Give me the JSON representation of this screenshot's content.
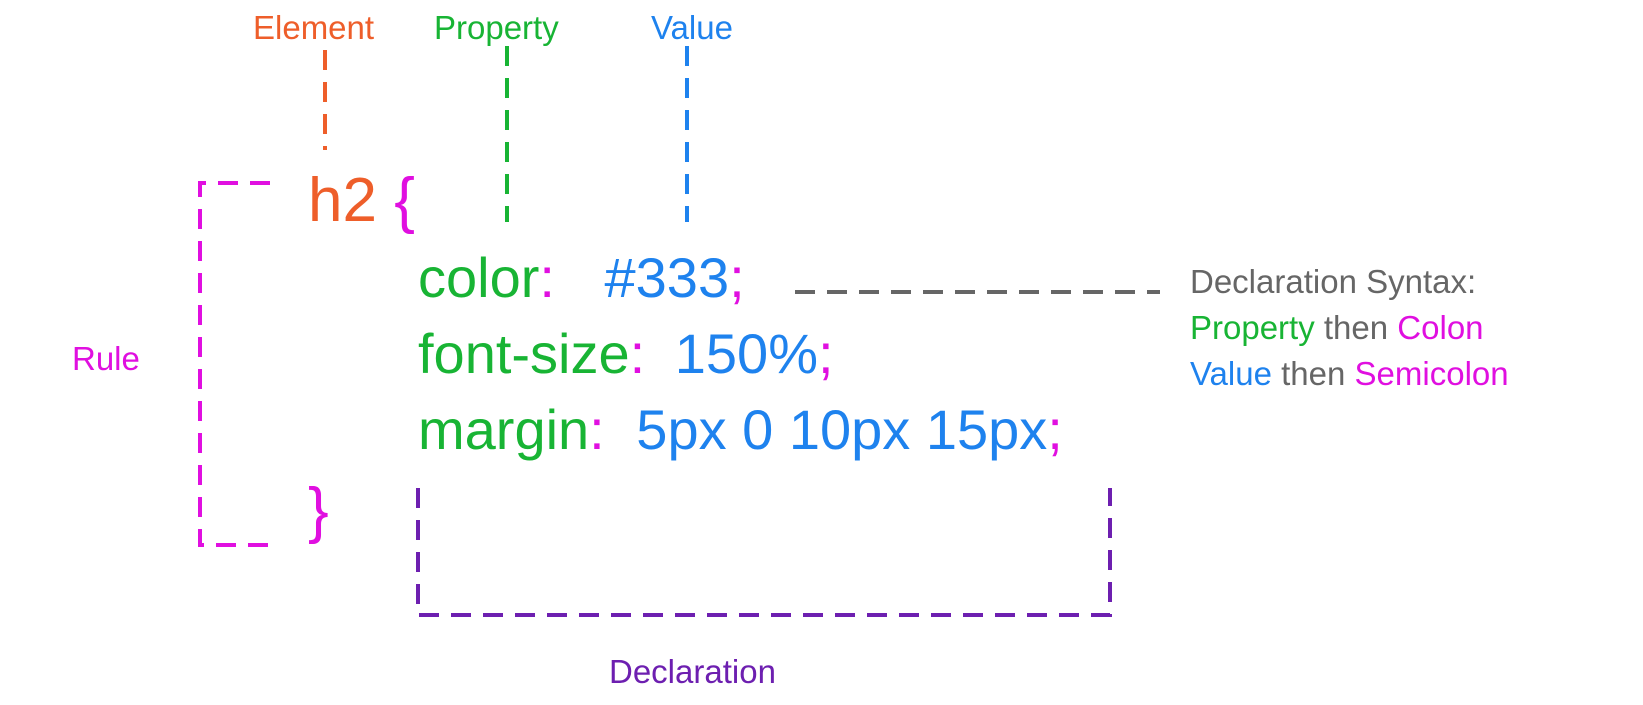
{
  "labels": {
    "element": "Element",
    "property": "Property",
    "value": "Value",
    "rule": "Rule",
    "declaration": "Declaration"
  },
  "code": {
    "selector": "h2",
    "open_brace": "{",
    "close_brace": "}",
    "lines": [
      {
        "property": "color",
        "colon": ":",
        "value": "#333",
        "semicolon": ";"
      },
      {
        "property": "font-size",
        "colon": ":",
        "value": "150%",
        "semicolon": ";"
      },
      {
        "property": "margin",
        "colon": ":",
        "value": "5px 0 10px 15px",
        "semicolon": ";"
      }
    ]
  },
  "syntax_note": {
    "title": "Declaration Syntax:",
    "line2": {
      "a": "Property",
      "then": " then ",
      "b": "Colon"
    },
    "line3": {
      "a": "Value",
      "then": " then ",
      "b": "Semicolon"
    }
  },
  "colors": {
    "element": "#ee5e2a",
    "property": "#18b434",
    "value": "#1e82ee",
    "punctuation": "#e00fe0",
    "note": "#666666",
    "declaration": "#6d1fb0"
  }
}
